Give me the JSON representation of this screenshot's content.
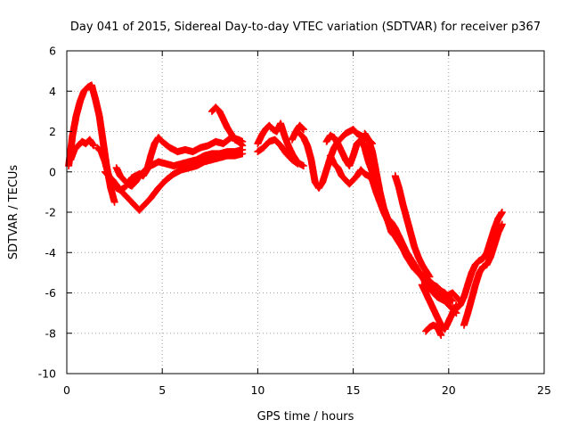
{
  "chart_data": {
    "type": "scatter",
    "title": "Day 041 of 2015, Sidereal Day-to-day VTEC variation (SDTVAR) for receiver p367",
    "xlabel": "GPS time / hours",
    "ylabel": "SDTVAR / TECUs",
    "xlim": [
      0,
      25
    ],
    "ylim": [
      -10,
      6
    ],
    "x_ticks": [
      0,
      5,
      10,
      15,
      20,
      25
    ],
    "y_ticks": [
      -10,
      -8,
      -6,
      -4,
      -2,
      0,
      2,
      4,
      6
    ],
    "grid": true,
    "legend": "none",
    "marker": "plus",
    "series_color": "#ff0000",
    "series": [
      {
        "x": [
          0.1,
          0.3,
          0.5,
          0.7,
          0.9,
          1.1,
          1.3,
          1.5,
          1.7,
          1.9,
          2.1,
          2.3,
          2.5
        ],
        "y": [
          0.3,
          1.8,
          2.8,
          3.5,
          4.0,
          4.2,
          4.3,
          3.6,
          2.8,
          1.5,
          0.2,
          -0.8,
          -1.5
        ]
      },
      {
        "x": [
          0.2,
          0.4,
          0.6,
          0.8,
          1.0,
          1.2,
          1.4
        ],
        "y": [
          0.6,
          1.1,
          1.3,
          1.5,
          1.4,
          1.6,
          1.3
        ]
      },
      {
        "x": [
          1.6,
          1.8,
          2.0,
          2.2,
          2.4,
          2.6,
          2.8,
          3.0,
          3.2,
          3.4,
          3.6,
          3.8,
          4.0,
          4.2,
          4.4,
          4.6,
          4.8,
          5.0,
          5.4,
          5.8,
          6.2,
          6.6,
          7.0,
          7.4,
          7.8,
          8.2,
          8.6,
          9.0,
          9.2
        ],
        "y": [
          1.2,
          1.0,
          0.5,
          -0.2,
          -0.6,
          -0.8,
          -0.9,
          -0.8,
          -0.6,
          -0.3,
          -0.2,
          -0.1,
          -0.2,
          0.1,
          0.8,
          1.4,
          1.7,
          1.5,
          1.2,
          1.0,
          1.1,
          1.0,
          1.2,
          1.3,
          1.5,
          1.4,
          1.7,
          1.6,
          1.5
        ]
      },
      {
        "x": [
          2.6,
          2.8,
          3.0,
          3.2,
          3.4,
          3.6,
          3.8,
          4.0,
          4.4,
          4.8,
          5.2,
          5.6,
          6.0,
          6.4,
          6.8,
          7.2,
          7.6,
          8.0,
          8.4,
          8.8,
          9.2
        ],
        "y": [
          0.2,
          -0.2,
          -0.4,
          -0.6,
          -0.7,
          -0.5,
          -0.2,
          0.0,
          0.3,
          0.5,
          0.4,
          0.3,
          0.4,
          0.5,
          0.6,
          0.8,
          0.9,
          0.9,
          1.0,
          1.0,
          1.1
        ]
      },
      {
        "x": [
          2.0,
          2.4,
          2.8,
          3.2,
          3.6,
          3.8,
          4.0,
          4.4,
          4.8,
          5.2,
          5.6,
          6.0,
          6.4,
          6.8,
          7.2,
          7.6,
          8.0,
          8.4,
          8.8,
          9.2
        ],
        "y": [
          0.0,
          -0.4,
          -0.9,
          -1.3,
          -1.7,
          -1.9,
          -1.7,
          -1.3,
          -0.8,
          -0.4,
          -0.1,
          0.1,
          0.2,
          0.3,
          0.5,
          0.6,
          0.7,
          0.8,
          0.8,
          0.9
        ]
      },
      {
        "x": [
          7.6,
          7.8,
          8.0,
          8.2,
          8.4,
          8.6,
          8.8,
          9.0,
          9.2
        ],
        "y": [
          3.0,
          3.2,
          3.0,
          2.6,
          2.2,
          1.9,
          1.6,
          1.5,
          1.3
        ]
      },
      {
        "x": [
          10.0,
          10.2,
          10.4,
          10.6,
          10.8,
          11.0,
          11.2,
          11.4,
          11.6,
          11.8,
          12.0,
          12.2,
          12.4
        ],
        "y": [
          1.4,
          1.8,
          2.1,
          2.3,
          2.1,
          2.0,
          2.4,
          1.8,
          1.3,
          0.9,
          0.6,
          0.4,
          0.3
        ]
      },
      {
        "x": [
          10.0,
          10.3,
          10.6,
          10.9,
          11.2,
          11.5,
          11.8,
          12.1
        ],
        "y": [
          1.0,
          1.2,
          1.5,
          1.6,
          1.3,
          0.9,
          0.6,
          0.4
        ]
      },
      {
        "x": [
          11.8,
          12.0,
          12.2,
          12.4
        ],
        "y": [
          1.6,
          2.0,
          2.3,
          2.1
        ]
      },
      {
        "x": [
          12.2,
          12.4,
          12.6,
          12.8,
          13.0,
          13.2,
          13.4,
          13.6,
          13.8,
          14.0,
          14.2,
          14.4,
          14.6,
          14.8,
          15.0,
          15.2,
          15.4,
          15.6,
          15.8,
          16.0
        ],
        "y": [
          1.9,
          1.7,
          1.3,
          0.6,
          -0.5,
          -0.8,
          -0.5,
          0.1,
          0.7,
          1.2,
          1.5,
          1.7,
          1.9,
          2.0,
          2.1,
          1.9,
          1.8,
          1.7,
          1.6,
          1.4
        ]
      },
      {
        "x": [
          13.6,
          13.8,
          14.0,
          14.2,
          14.4,
          14.6,
          14.8,
          15.0,
          15.2,
          15.4,
          15.6,
          15.8,
          16.0,
          16.2,
          16.4,
          16.6,
          16.8,
          17.0,
          17.2,
          17.4,
          17.6,
          17.8,
          18.0,
          18.2,
          18.4,
          18.6,
          18.8,
          19.0,
          19.2,
          19.4,
          19.6,
          19.8,
          20.0,
          20.2
        ],
        "y": [
          1.5,
          1.8,
          1.7,
          1.4,
          1.0,
          0.6,
          0.3,
          0.8,
          1.4,
          1.6,
          1.2,
          0.5,
          0.0,
          -0.6,
          -1.2,
          -1.8,
          -2.4,
          -3.0,
          -3.2,
          -3.5,
          -3.8,
          -4.0,
          -4.3,
          -4.6,
          -4.9,
          -5.1,
          -5.3,
          -5.4,
          -5.6,
          -5.7,
          -5.9,
          -6.0,
          -6.2,
          -6.4
        ]
      },
      {
        "x": [
          13.8,
          14.0,
          14.2,
          14.4,
          14.6,
          14.8,
          15.0,
          15.2,
          15.4,
          15.6,
          15.8,
          16.0,
          16.2,
          16.4,
          16.6,
          16.8,
          17.0,
          17.2,
          17.4,
          17.6,
          17.8,
          18.0,
          18.2,
          18.4,
          18.6,
          18.8,
          19.0,
          19.2,
          19.4,
          19.6,
          19.8,
          20.0
        ],
        "y": [
          0.8,
          0.4,
          0.2,
          -0.2,
          -0.4,
          -0.6,
          -0.4,
          -0.2,
          0.1,
          -0.1,
          -0.2,
          -0.4,
          -1.0,
          -1.5,
          -2.0,
          -2.4,
          -2.8,
          -3.1,
          -3.4,
          -3.8,
          -4.2,
          -4.5,
          -4.8,
          -5.0,
          -5.2,
          -5.4,
          -5.6,
          -5.8,
          -6.0,
          -6.2,
          -6.3,
          -6.5
        ]
      },
      {
        "x": [
          15.6,
          15.8,
          16.0,
          16.2,
          16.4,
          16.6,
          16.8,
          17.0,
          17.2,
          17.4,
          17.6,
          17.8,
          18.0,
          18.2,
          18.4,
          18.6,
          18.8,
          19.0,
          19.2,
          19.4,
          19.6,
          19.8,
          20.0,
          20.2,
          20.4
        ],
        "y": [
          1.9,
          1.6,
          1.0,
          0.0,
          -1.0,
          -1.8,
          -2.3,
          -2.5,
          -2.8,
          -3.2,
          -3.6,
          -4.0,
          -4.3,
          -4.6,
          -4.9,
          -5.2,
          -5.5,
          -5.8,
          -6.0,
          -6.2,
          -6.3,
          -6.4,
          -6.6,
          -6.8,
          -7.0
        ]
      },
      {
        "x": [
          17.2,
          17.4,
          17.6,
          17.8,
          18.0,
          18.2,
          18.4,
          18.6,
          18.8,
          19.0
        ],
        "y": [
          -0.2,
          -0.8,
          -1.6,
          -2.3,
          -3.0,
          -3.7,
          -4.2,
          -4.6,
          -4.9,
          -5.2
        ]
      },
      {
        "x": [
          18.6,
          18.8,
          19.0,
          19.2,
          19.4,
          19.6,
          19.8,
          20.0,
          20.2,
          20.4
        ],
        "y": [
          -5.6,
          -6.0,
          -6.4,
          -6.8,
          -7.2,
          -7.6,
          -7.8,
          -7.4,
          -7.0,
          -6.6
        ]
      },
      {
        "x": [
          19.4,
          19.6,
          19.8,
          20.0,
          20.2,
          20.4,
          20.6
        ],
        "y": [
          -5.8,
          -6.0,
          -6.2,
          -6.1,
          -6.0,
          -6.2,
          -6.4
        ]
      },
      {
        "x": [
          20.4,
          20.6,
          20.8,
          21.0,
          21.2,
          21.4,
          21.6,
          21.8,
          22.0,
          22.2,
          22.4,
          22.6,
          22.8
        ],
        "y": [
          -6.8,
          -6.6,
          -6.2,
          -5.6,
          -5.0,
          -4.6,
          -4.4,
          -4.3,
          -4.0,
          -3.4,
          -2.8,
          -2.3,
          -2.0
        ]
      },
      {
        "x": [
          20.8,
          21.0,
          21.2,
          21.4,
          21.6,
          21.8,
          22.0,
          22.2,
          22.4,
          22.6,
          22.8
        ],
        "y": [
          -7.6,
          -7.0,
          -6.3,
          -5.6,
          -5.0,
          -4.7,
          -4.6,
          -4.2,
          -3.6,
          -3.0,
          -2.6
        ]
      },
      {
        "x": [
          18.8,
          19.0,
          19.2,
          19.4,
          19.6
        ],
        "y": [
          -7.9,
          -7.7,
          -7.6,
          -7.7,
          -8.1
        ]
      }
    ]
  }
}
